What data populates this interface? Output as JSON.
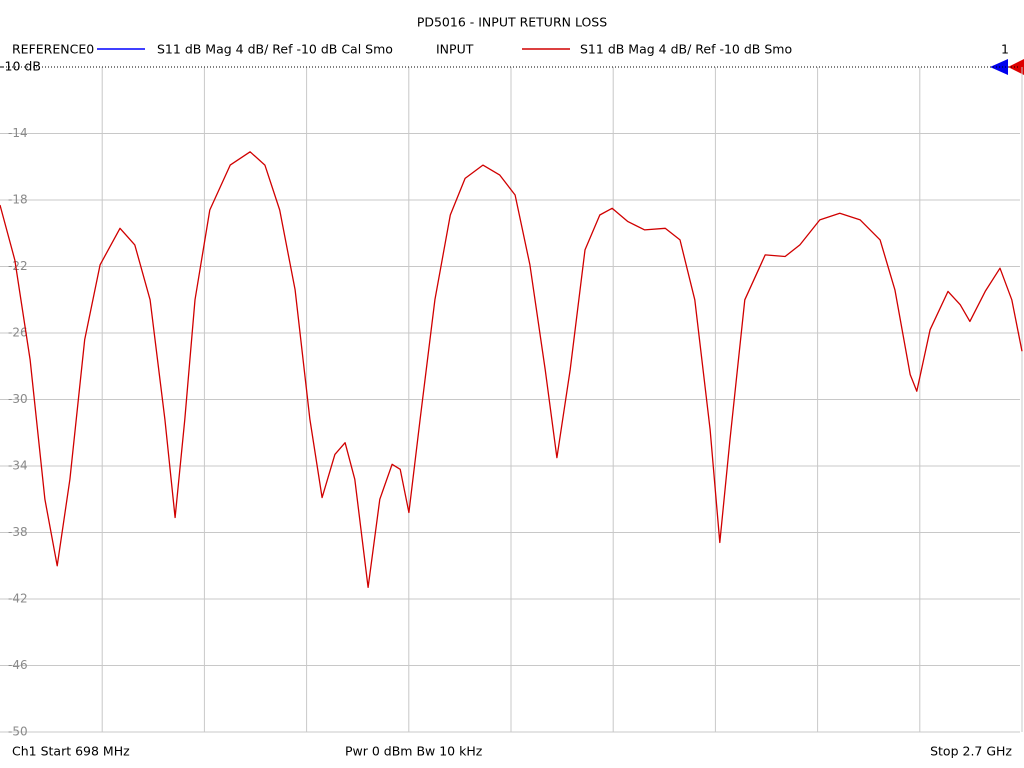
{
  "chart_data": {
    "type": "line",
    "title": "PD5016 - INPUT RETURN LOSS",
    "reference_trace": {
      "name": "REFERENCE0",
      "color": "#0000ff",
      "description": "S11  dB Mag  4 dB/ Ref -10 dB  Cal Smo"
    },
    "marker_label": "1",
    "footer": {
      "left": "Ch1  Start  698 MHz",
      "center": "Pwr  0 dBm  Bw  10 kHz",
      "right": "Stop  2.7 GHz"
    },
    "x": [
      698,
      727,
      757,
      786,
      810,
      835,
      864,
      894,
      933,
      962,
      992,
      1021,
      1041,
      1060,
      1080,
      1109,
      1149,
      1188,
      1217,
      1246,
      1276,
      1305,
      1329,
      1354,
      1374,
      1393,
      1419,
      1442,
      1466,
      1482,
      1499,
      1521,
      1550,
      1580,
      1609,
      1644,
      1677,
      1707,
      1736,
      1766,
      1789,
      1815,
      1844,
      1873,
      1897,
      1928,
      1961,
      2001,
      2030,
      2059,
      2089,
      2108,
      2128,
      2157,
      2197,
      2236,
      2265,
      2304,
      2343,
      2383,
      2422,
      2451,
      2481,
      2494,
      2520,
      2555,
      2579,
      2598,
      2628,
      2657,
      2680,
      2700
    ],
    "series": [
      {
        "name": "INPUT",
        "color": "#d00000",
        "description": "S11  dB Mag  4 dB/ Ref -10 dB  Smo",
        "values": [
          -18.3,
          -21.6,
          -27.6,
          -36.0,
          -40.0,
          -34.8,
          -26.4,
          -21.9,
          -19.7,
          -20.7,
          -24.0,
          -31.2,
          -37.1,
          -31.2,
          -24.0,
          -18.6,
          -15.9,
          -15.1,
          -15.9,
          -18.6,
          -23.4,
          -31.2,
          -35.9,
          -33.3,
          -32.6,
          -34.8,
          -41.3,
          -36.0,
          -33.9,
          -34.2,
          -36.8,
          -31.2,
          -24.0,
          -18.9,
          -16.7,
          -15.9,
          -16.5,
          -17.7,
          -21.9,
          -28.2,
          -33.5,
          -28.2,
          -21.0,
          -18.9,
          -18.5,
          -19.3,
          -19.8,
          -19.7,
          -20.4,
          -24.0,
          -31.8,
          -38.6,
          -32.4,
          -24.0,
          -21.3,
          -21.4,
          -20.7,
          -19.2,
          -18.8,
          -19.2,
          -20.4,
          -23.4,
          -28.5,
          -29.5,
          -25.8,
          -23.5,
          -24.3,
          -25.3,
          -23.5,
          -22.1,
          -24.0,
          -27.1
        ]
      }
    ],
    "xlim": [
      698,
      2700
    ],
    "ylim": [
      -50,
      -10
    ],
    "yticks": [
      {
        "value": -10,
        "label": "-10 dB"
      },
      -14,
      -18,
      -22,
      -26,
      -30,
      -34,
      -38,
      -42,
      -46,
      -50
    ],
    "grid": true
  }
}
